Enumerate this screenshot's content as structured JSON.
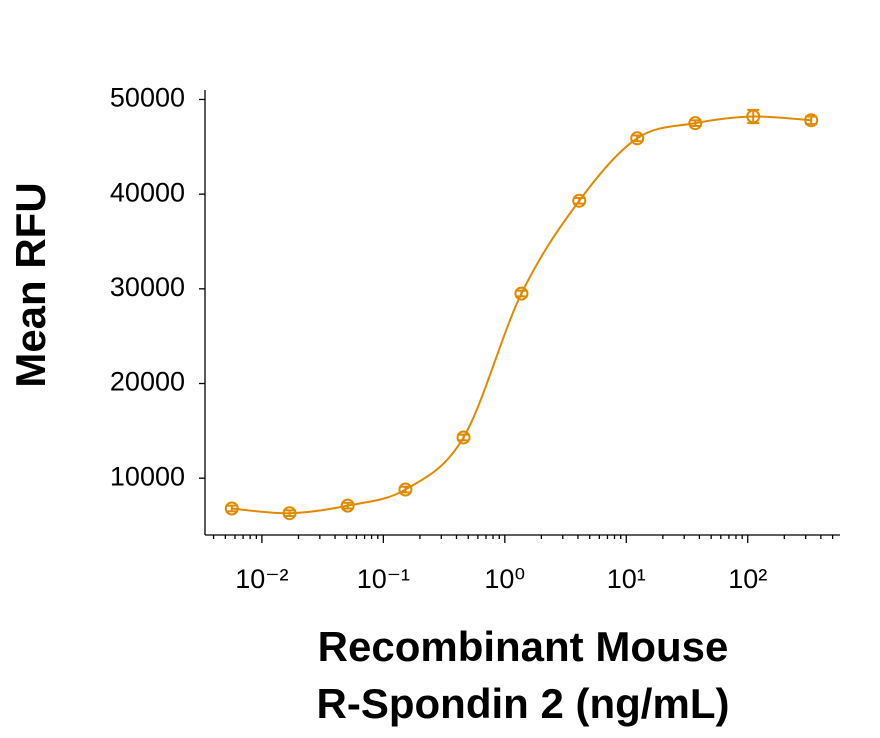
{
  "chart_data": {
    "type": "scatter",
    "ylabel": "Mean RFU",
    "xlabel": [
      "Recombinant Mouse",
      "R-Spondin 2 (ng/mL)"
    ],
    "x": [
      0.00565,
      0.0169,
      0.0508,
      0.152,
      0.457,
      1.37,
      4.1,
      12.3,
      37,
      111,
      333
    ],
    "values": [
      6800,
      6300,
      7100,
      8800,
      14300,
      29500,
      39300,
      45900,
      47500,
      48200,
      47800
    ],
    "errors": [
      300,
      300,
      300,
      300,
      300,
      300,
      300,
      300,
      300,
      700,
      400
    ],
    "color": "#e08a00",
    "xscale": "log",
    "minor_ticks": true,
    "xlim": [
      0.0034,
      575
    ],
    "ylim": [
      4000,
      51000
    ],
    "xticks": [
      {
        "value": 0.01,
        "label": "10⁻²"
      },
      {
        "value": 0.1,
        "label": "10⁻¹"
      },
      {
        "value": 1,
        "label": "10⁰"
      },
      {
        "value": 10,
        "label": "10¹"
      },
      {
        "value": 100,
        "label": "10²"
      }
    ],
    "yticks": [
      10000,
      20000,
      30000,
      40000,
      50000
    ]
  }
}
